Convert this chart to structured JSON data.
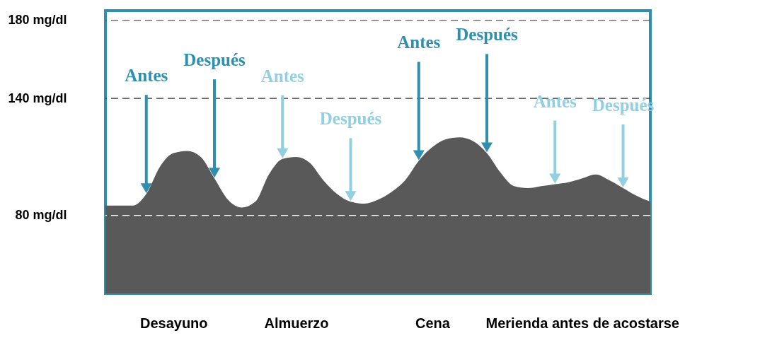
{
  "chart_data": {
    "type": "area",
    "categories": [
      null,
      null,
      null,
      null,
      null,
      "Desayuno",
      null,
      null,
      null,
      null,
      null,
      null,
      null,
      null,
      "Almuerzo",
      null,
      null,
      null,
      null,
      null,
      null,
      null,
      null,
      null,
      "Cena",
      null,
      null,
      null,
      null,
      null,
      null,
      null,
      null,
      null,
      null,
      "Merienda antes de acostarse",
      null,
      null,
      null,
      null,
      null
    ],
    "series": [
      {
        "color": "#595959",
        "values": [
          85,
          85,
          85,
          91,
          105,
          112,
          113,
          110,
          99,
          88,
          84,
          87,
          101,
          109,
          110,
          107,
          98,
          91,
          87,
          86,
          88,
          92,
          98,
          108,
          115,
          119,
          120,
          118,
          112,
          102,
          95,
          94,
          95,
          96,
          97,
          99,
          101,
          98,
          94,
          90,
          87
        ]
      }
    ],
    "ylim": [
      40,
      185
    ],
    "yticks": [
      {
        "value": 80,
        "label": "80 mg/dl"
      },
      {
        "value": 140,
        "label": "140 mg/dl"
      },
      {
        "value": 180,
        "label": "180 mg/dl"
      }
    ],
    "ref_lines": [
      {
        "axis": "y",
        "value": 80,
        "line_style": "dashed",
        "color": "#ffffff"
      },
      {
        "axis": "y",
        "value": 140,
        "line_style": "dashed",
        "color": "#333333"
      },
      {
        "axis": "y",
        "value": 180,
        "line_style": "dashed",
        "color": "#555555"
      }
    ],
    "annotations": [
      "Antes",
      "Después",
      "Antes",
      "Después",
      "Antes",
      "Después",
      "Antes",
      "Después"
    ],
    "grid": false
  }
}
